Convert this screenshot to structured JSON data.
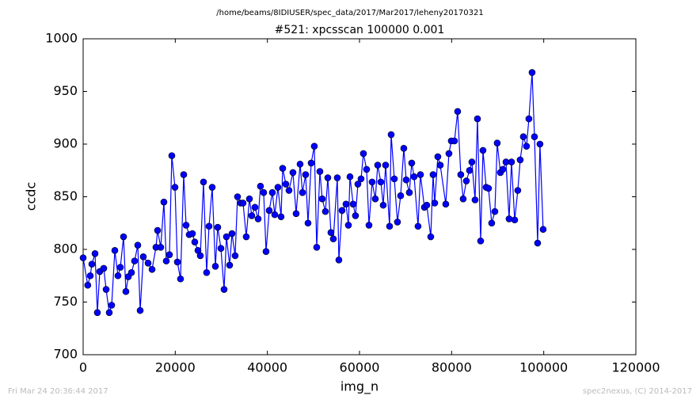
{
  "chart_data": {
    "type": "line",
    "suptitle": "/home/beams/8IDIUSER/spec_data/2017/Mar2017/leheny20170321",
    "title": "#521: xpcsscan 100000 0.001",
    "xlabel": "img_n",
    "ylabel": "ccdc",
    "footer_left": "Fri Mar 24 20:36:44 2017",
    "footer_right": "spec2nexus, (C) 2014-2017",
    "color": "#0000ff",
    "xlim": [
      0,
      120000
    ],
    "xticks": [
      0,
      20000,
      40000,
      60000,
      80000,
      100000,
      120000
    ],
    "ylim": [
      700,
      1000
    ],
    "yticks": [
      700,
      750,
      800,
      850,
      900,
      950,
      1000
    ],
    "x": [
      0,
      1000,
      1550,
      1890,
      2580,
      3090,
      3610,
      4470,
      4990,
      5670,
      6190,
      6880,
      7560,
      8080,
      8770,
      9280,
      9800,
      10490,
      11170,
      11860,
      12380,
      13060,
      14100,
      14960,
      15810,
      16160,
      16850,
      17530,
      18050,
      18740,
      19250,
      19940,
      20460,
      21140,
      21830,
      22350,
      23030,
      23720,
      24240,
      24930,
      25440,
      26130,
      26810,
      27330,
      28020,
      28710,
      29220,
      29910,
      30600,
      31110,
      31800,
      32320,
      33000,
      33520,
      34200,
      34720,
      35410,
      36100,
      36610,
      37300,
      37990,
      38500,
      39190,
      39710,
      40400,
      41080,
      41600,
      42290,
      42970,
      43320,
      44010,
      44690,
      45550,
      46240,
      47100,
      47620,
      48300,
      48820,
      49510,
      50190,
      50710,
      51400,
      51910,
      52600,
      53120,
      53800,
      54320,
      55180,
      55520,
      56210,
      57070,
      57590,
      57930,
      58620,
      59130,
      59650,
      60340,
      60850,
      61540,
      62060,
      62740,
      63430,
      63950,
      64630,
      65150,
      65670,
      66530,
      66870,
      67560,
      68240,
      68930,
      69620,
      70140,
      70820,
      71340,
      71860,
      72710,
      73230,
      74090,
      74610,
      75470,
      75980,
      76330,
      77010,
      77530,
      78730,
      79420,
      79930,
      80620,
      81310,
      81990,
      82510,
      83200,
      83890,
      84400,
      85090,
      85610,
      86300,
      86810,
      87500,
      88010,
      88700,
      89390,
      89900,
      90590,
      91110,
      91800,
      92480,
      93000,
      93690,
      94370,
      94890,
      95580,
      96260,
      96780,
      97470,
      97990,
      98670,
      99180,
      99870
    ],
    "values": [
      792,
      766,
      775,
      786,
      796,
      740,
      779,
      782,
      762,
      740,
      747,
      799,
      775,
      783,
      812,
      760,
      774,
      778,
      789,
      804,
      742,
      793,
      787,
      781,
      802,
      818,
      802,
      845,
      789,
      795,
      889,
      859,
      788,
      772,
      871,
      823,
      814,
      815,
      807,
      799,
      794,
      864,
      778,
      822,
      859,
      784,
      821,
      801,
      762,
      812,
      785,
      815,
      794,
      850,
      844,
      844,
      812,
      848,
      832,
      840,
      829,
      860,
      854,
      798,
      837,
      854,
      833,
      859,
      831,
      877,
      862,
      856,
      873,
      834,
      881,
      854,
      871,
      825,
      882,
      898,
      802,
      874,
      848,
      836,
      868,
      816,
      810,
      868,
      790,
      837,
      843,
      823,
      869,
      843,
      832,
      862,
      867,
      891,
      876,
      823,
      864,
      848,
      880,
      864,
      842,
      880,
      822,
      909,
      867,
      826,
      851,
      896,
      866,
      854,
      882,
      869,
      822,
      871,
      840,
      842,
      812,
      871,
      844,
      888,
      880,
      843,
      891,
      903,
      903,
      931,
      871,
      848,
      865,
      875,
      883,
      847,
      924,
      808,
      894,
      859,
      858,
      825,
      836,
      901,
      873,
      876,
      883,
      829,
      883,
      828,
      856,
      885,
      907,
      898,
      924,
      968,
      907,
      806,
      900,
      819
    ]
  }
}
